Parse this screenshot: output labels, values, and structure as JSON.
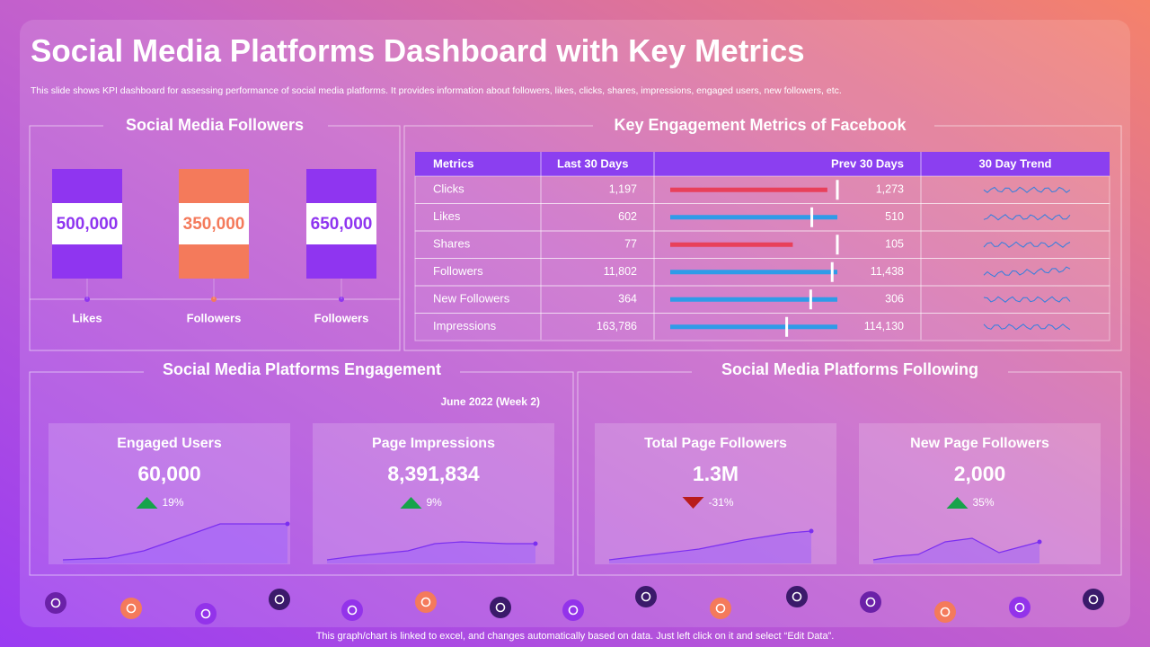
{
  "header": {
    "title": "Social Media Platforms Dashboard with Key Metrics",
    "subtitle": "This slide shows KPI dashboard for assessing performance of social media platforms. It provides information about followers, likes, clicks, shares, impressions, engaged users, new followers, etc."
  },
  "followers": {
    "title": "Social Media Followers",
    "items": [
      {
        "value": "500,000",
        "label": "Likes",
        "color": "#8f35f0"
      },
      {
        "value": "350,000",
        "label": "Followers",
        "color": "#f47a5b"
      },
      {
        "value": "650,000",
        "label": "Followers",
        "color": "#8f35f0"
      }
    ]
  },
  "engagement_table": {
    "title": "Key Engagement Metrics of Facebook",
    "columns": [
      "Metrics",
      "Last 30 Days",
      "Prev 30 Days",
      "30 Day Trend"
    ],
    "rows": [
      [
        "Clicks",
        "1,197",
        "1,273"
      ],
      [
        "Likes",
        "602",
        "510"
      ],
      [
        "Shares",
        "77",
        "105"
      ],
      [
        "Followers",
        "11,802",
        "11,438"
      ],
      [
        "New Followers",
        "364",
        "306"
      ],
      [
        "Impressions",
        "163,786",
        "114,130"
      ]
    ]
  },
  "engagement": {
    "title": "Social Media Platforms Engagement",
    "period": "June 2022 (Week 2)",
    "cards": [
      {
        "title": "Engaged Users",
        "value": "60,000",
        "change": "19%"
      },
      {
        "title": "Page Impressions",
        "value": "8,391,834",
        "change": "9%"
      }
    ]
  },
  "following": {
    "title": "Social Media Platforms Following",
    "cards": [
      {
        "title": "Total Page Followers",
        "value": "1.3M",
        "change": "-31%"
      },
      {
        "title": "New Page Followers",
        "value": "2,000",
        "change": "35%"
      }
    ]
  },
  "footer": {
    "note": "This graph/chart is linked to excel, and changes automatically based on data. Just left click on it and select “Edit Data”."
  }
}
